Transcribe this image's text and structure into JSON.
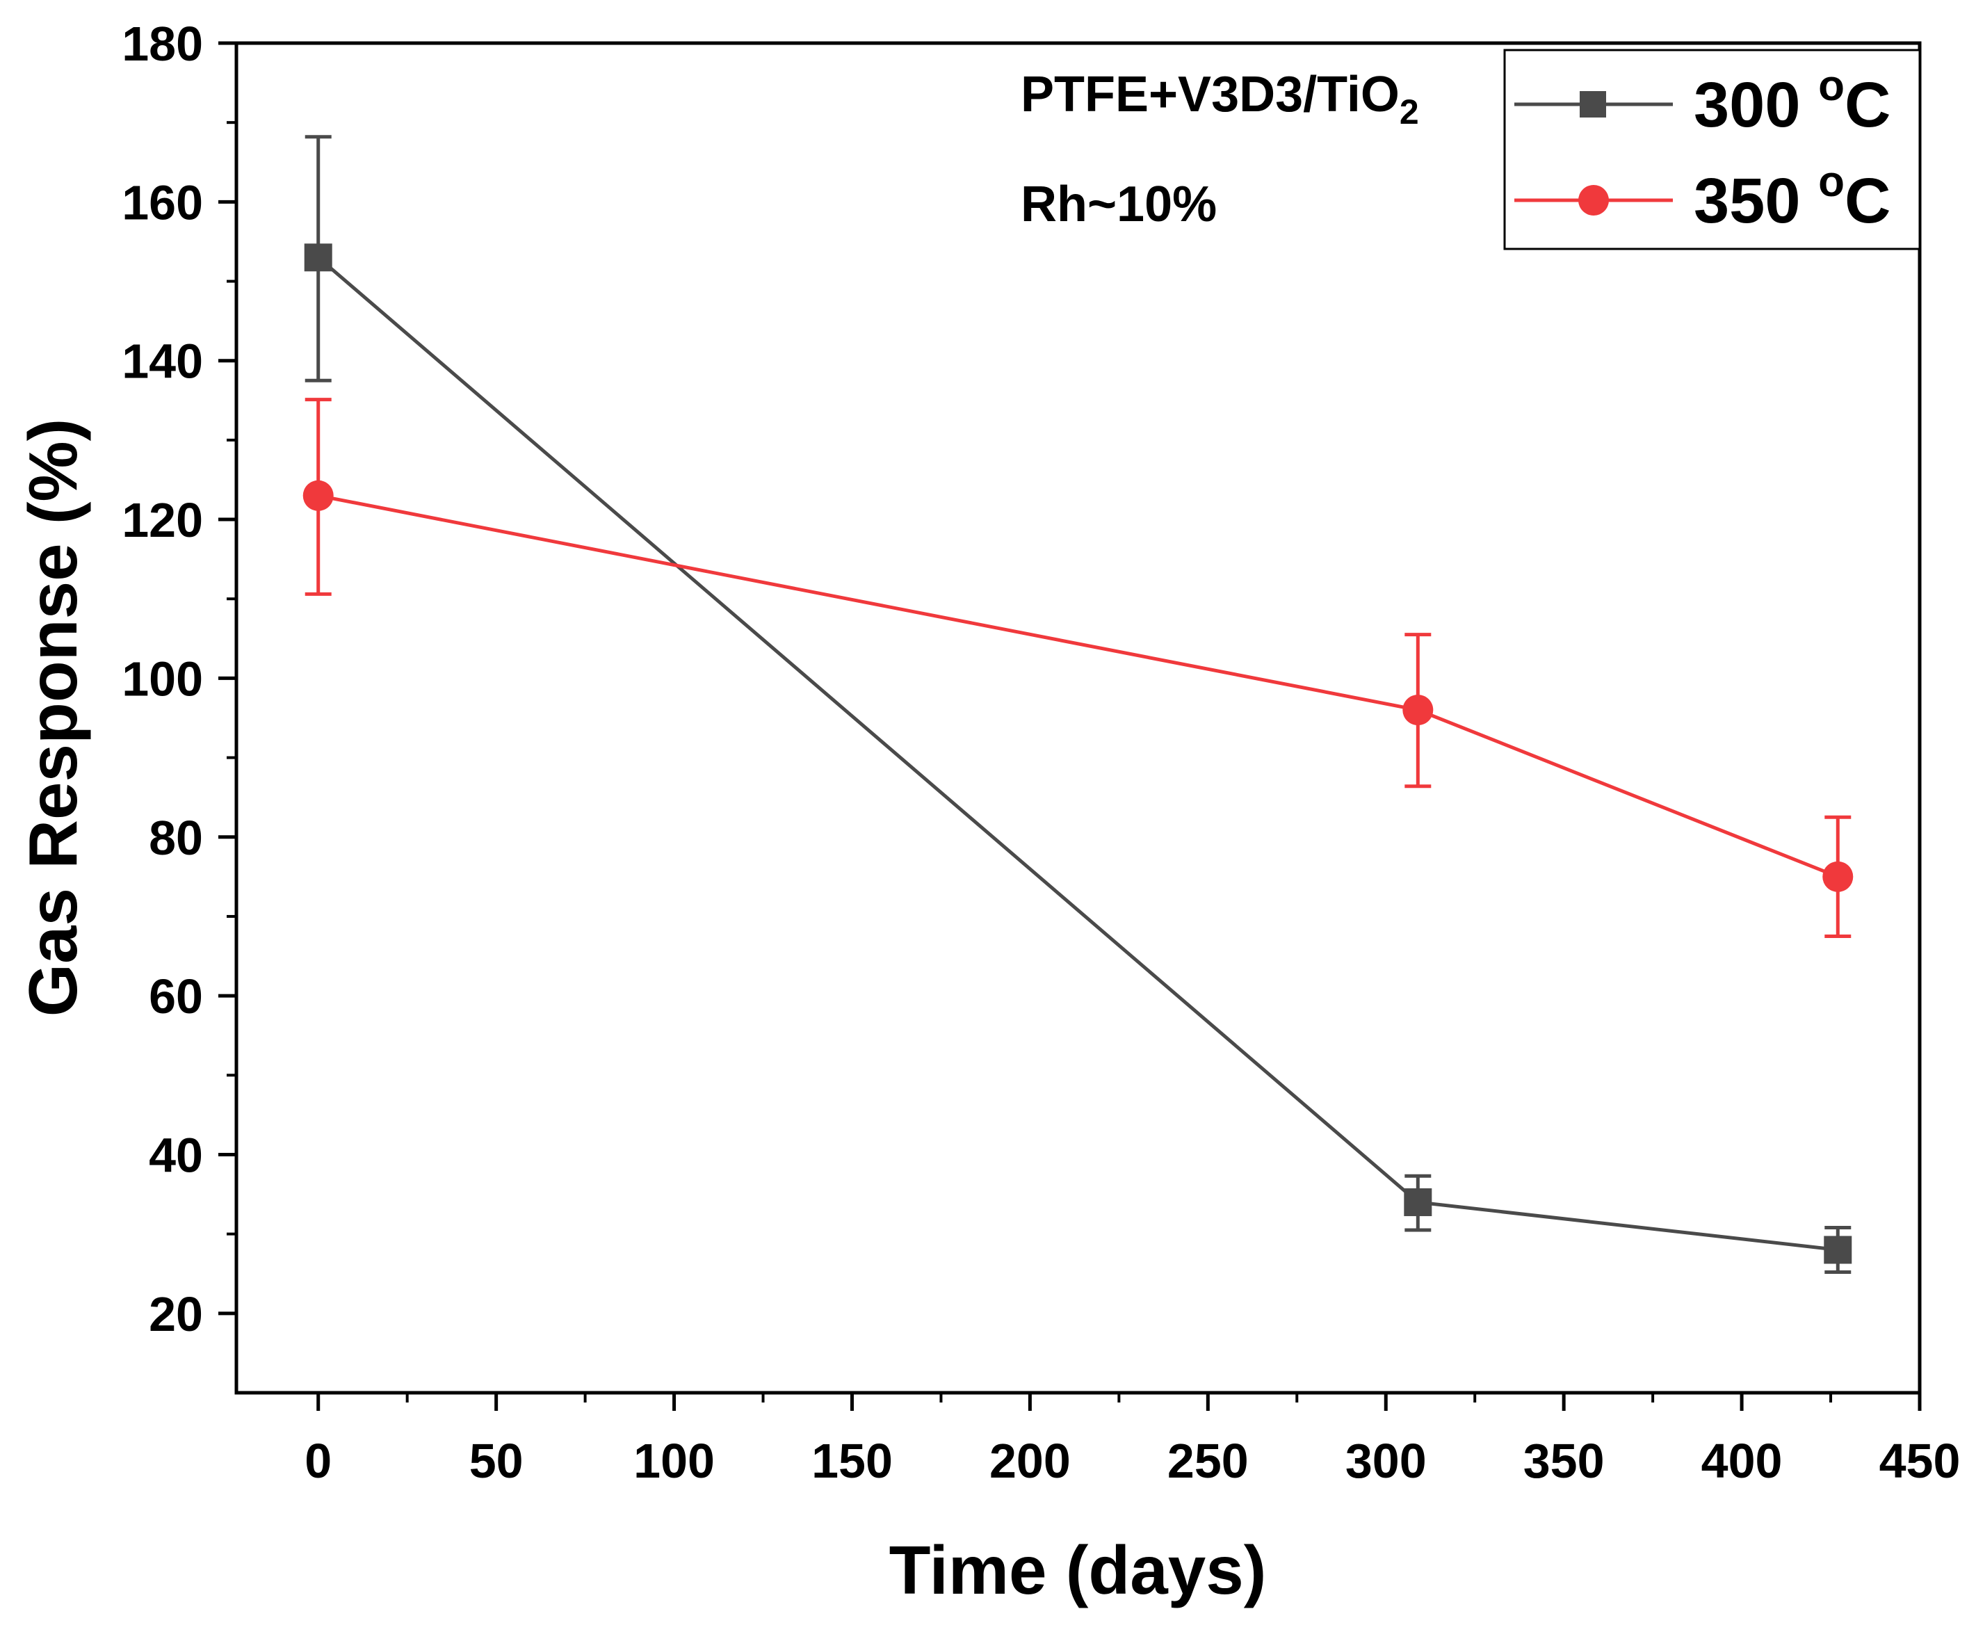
{
  "chart_data": {
    "type": "line",
    "xlabel": "Time (days)",
    "ylabel": "Gas Response (%)",
    "xlim": [
      -23,
      450
    ],
    "ylim": [
      10,
      180
    ],
    "xticks": [
      0,
      50,
      100,
      150,
      200,
      250,
      300,
      350,
      400,
      450
    ],
    "xtick_labels": [
      "0",
      "50",
      "100",
      "150",
      "200",
      "250",
      "300",
      "350",
      "400",
      "450"
    ],
    "yticks": [
      20,
      40,
      60,
      80,
      100,
      120,
      140,
      160,
      180
    ],
    "ytick_labels": [
      "20",
      "40",
      "60",
      "80",
      "100",
      "120",
      "140",
      "160",
      "180"
    ],
    "grid": false,
    "legend_position": "top-right",
    "annotations": {
      "sample_main": "PTFE+V3D3/TiO",
      "sample_sub": "2",
      "humidity": "Rh~10%"
    },
    "series": [
      {
        "name": "300 °C",
        "label_value": "300 ",
        "label_sup": "o",
        "label_unit": "C",
        "color": "#4a4a4a",
        "marker": "square",
        "x": [
          0,
          309,
          427
        ],
        "y": [
          153,
          34,
          28
        ],
        "err_low": [
          137.5,
          30.5,
          25.2
        ],
        "err_high": [
          168.2,
          37.3,
          30.8
        ]
      },
      {
        "name": "350 °C",
        "label_value": "350 ",
        "label_sup": "o",
        "label_unit": "C",
        "color": "#f0393c",
        "marker": "circle",
        "x": [
          0,
          309,
          427
        ],
        "y": [
          123,
          96,
          75
        ],
        "err_low": [
          110.6,
          86.4,
          67.5
        ],
        "err_high": [
          135.1,
          105.5,
          82.5
        ]
      }
    ]
  }
}
